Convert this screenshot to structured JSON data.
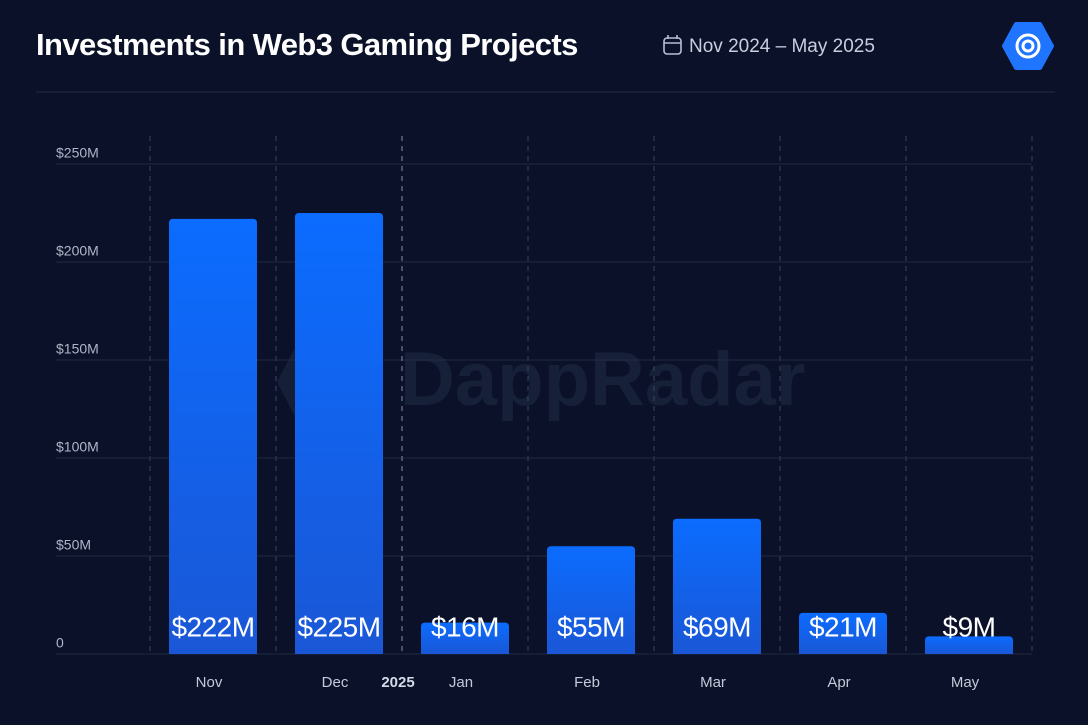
{
  "chart_data": {
    "type": "bar",
    "title": "Investments in Web3 Gaming Projects",
    "subtitle": "Nov 2024 – May 2025",
    "watermark": "DappRadar",
    "year_divider": "2025",
    "categories": [
      "Nov",
      "Dec",
      "Jan",
      "Feb",
      "Mar",
      "Apr",
      "May"
    ],
    "values": [
      222,
      225,
      16,
      55,
      69,
      21,
      9
    ],
    "value_labels": [
      "$222M",
      "$225M",
      "$16M",
      "$55M",
      "$69M",
      "$21M",
      "$9M"
    ],
    "color": "#0a6cff",
    "ylim": [
      0,
      250
    ],
    "yticks": [
      0,
      {
        "value": 50,
        "label": "$50M"
      },
      {
        "value": 100,
        "label": "$100M"
      },
      {
        "value": 150,
        "label": "$150M"
      },
      {
        "value": 200,
        "label": "$200M"
      },
      {
        "value": 250,
        "label": "$250M"
      }
    ],
    "grid": true
  }
}
